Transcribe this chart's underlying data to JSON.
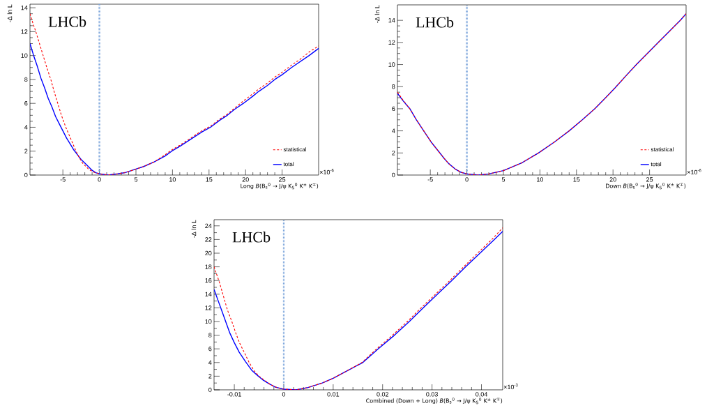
{
  "chart_data": [
    {
      "type": "line",
      "xlabel": "Long *B*(B$_{s}$$^{0}$ → J/ψ K$_{S}$$^{0}$ K$^{±}$ K$^{∓}$)",
      "ylabel": "-Δ ln L",
      "xlim": [
        -9.5,
        30
      ],
      "ylim": [
        0,
        14.3
      ],
      "xticks": [
        -5,
        0,
        5,
        10,
        15,
        20,
        25
      ],
      "yticks": [
        0,
        2,
        4,
        6,
        8,
        10,
        12,
        14
      ],
      "legend": "bottom right",
      "annotations": [
        "LHCb",
        "×10$^{-6}$"
      ],
      "ref_lines": [
        {
          "axis": "x",
          "value": 0,
          "color": "#7fa7dc",
          "line_style": "dotted"
        }
      ],
      "series": [
        {
          "name": "statistical",
          "color": "#ff0000",
          "line_style": "dashed",
          "x": [
            -9.5,
            -9.1,
            -8.7,
            -8.2,
            -7.7,
            -7.2,
            -6.65,
            -6.2,
            -5.7,
            -5.2,
            -4.6,
            -3.9,
            -3.2,
            -2.8,
            -2.3,
            -1.5,
            -0.8,
            0,
            1.2,
            2.5,
            3.5,
            5,
            6,
            7.5,
            9,
            9.9,
            11,
            12.5,
            14,
            15.2,
            16.5,
            17.5,
            18.5,
            19.7,
            21,
            21.8,
            23,
            24,
            25,
            26.3,
            27.5,
            28.7,
            30
          ],
          "values": [
            13.5,
            12.7,
            12,
            11,
            10,
            9,
            8,
            7,
            6,
            5,
            4,
            3,
            2,
            1.5,
            1,
            0.5,
            0.25,
            0.1,
            0,
            0.1,
            0.2,
            0.5,
            0.7,
            1.1,
            1.7,
            2.1,
            2.5,
            3.1,
            3.7,
            4.1,
            4.7,
            5.1,
            5.6,
            6.2,
            6.8,
            7.2,
            7.7,
            8.2,
            8.6,
            9.2,
            9.7,
            10.3,
            10.8
          ]
        },
        {
          "name": "total",
          "color": "#0000ff",
          "line_style": "solid",
          "x": [
            -9.5,
            -9,
            -8.5,
            -8,
            -7.5,
            -7,
            -6.5,
            -6,
            -5.5,
            -5,
            -4.5,
            -4,
            -3.5,
            -3,
            -2.5,
            -2,
            -1.5,
            -1,
            -0.5,
            0,
            1.2,
            2.5,
            3.5,
            5,
            6,
            7.5,
            9,
            9.9,
            11,
            12.5,
            14,
            15.2,
            16.5,
            17.5,
            18.5,
            19.7,
            21,
            21.8,
            23,
            24,
            25,
            26.3,
            27.5,
            28.7,
            30
          ],
          "values": [
            11,
            10,
            9.1,
            8.1,
            7.3,
            6.4,
            5.7,
            4.9,
            4.3,
            3.7,
            3.1,
            2.6,
            2.1,
            1.7,
            1.3,
            1,
            0.7,
            0.4,
            0.2,
            0.1,
            0,
            0.1,
            0.2,
            0.5,
            0.7,
            1.1,
            1.6,
            2,
            2.4,
            3,
            3.6,
            4,
            4.6,
            5,
            5.5,
            6,
            6.6,
            7,
            7.5,
            8,
            8.4,
            9,
            9.5,
            10,
            10.6
          ]
        }
      ]
    },
    {
      "type": "line",
      "xlabel": "Down *B*(B$_{s}$$^{0}$ → J/ψ K$_{S}$$^{0}$ K$^{±}$ K$^{∓}$)",
      "ylabel": "-Δ ln L",
      "xlim": [
        -9.5,
        30
      ],
      "ylim": [
        0,
        15.4
      ],
      "xticks": [
        -5,
        0,
        5,
        10,
        15,
        20,
        25
      ],
      "yticks": [
        0,
        2,
        4,
        6,
        8,
        10,
        12,
        14
      ],
      "legend": "bottom right",
      "annotations": [
        "LHCb",
        "×10$^{-6}$"
      ],
      "ref_lines": [
        {
          "axis": "x",
          "value": 0,
          "color": "#7fa7dc",
          "line_style": "dotted"
        }
      ],
      "series": [
        {
          "name": "statistical",
          "color": "#ff0000",
          "line_style": "dashed",
          "x": [
            -9.5,
            -8.7,
            -7.8,
            -6.9,
            -6,
            -4.9,
            -3.7,
            -3.1,
            -2.5,
            -1.6,
            -0.8,
            0,
            1.6,
            3,
            5,
            7.5,
            9.8,
            12,
            14,
            15.8,
            17.5,
            19,
            20.3,
            21.8,
            23.2,
            24.7,
            26.2,
            27.7,
            29.2,
            30
          ],
          "values": [
            7.5,
            6.75,
            6,
            5,
            4.1,
            3,
            2,
            1.5,
            1.05,
            0.55,
            0.25,
            0.1,
            0,
            0.1,
            0.4,
            1.1,
            2,
            3,
            4,
            5,
            6,
            7,
            7.9,
            9,
            10,
            11,
            12,
            13,
            14,
            14.6
          ]
        },
        {
          "name": "total",
          "color": "#0000ff",
          "line_style": "solid",
          "x": [
            -9.5,
            -8.7,
            -7.8,
            -6.9,
            -6,
            -4.9,
            -3.7,
            -3.1,
            -2.5,
            -1.6,
            -0.8,
            0,
            1.6,
            3,
            5,
            7.5,
            9.8,
            12,
            14,
            15.8,
            17.5,
            19,
            20.3,
            21.8,
            23.2,
            24.7,
            26.2,
            27.7,
            29.2,
            30
          ],
          "values": [
            7.4,
            6.7,
            6,
            5,
            4.1,
            3,
            2,
            1.5,
            1.05,
            0.55,
            0.25,
            0.1,
            0,
            0.1,
            0.4,
            1.1,
            2,
            3,
            4,
            5,
            6,
            7,
            7.9,
            9,
            10,
            11,
            12,
            13,
            14,
            14.6
          ]
        }
      ]
    },
    {
      "type": "line",
      "xlabel": "Combined (Down + Long) *B*(B$_{s}$$^{0}$ → J/ψ K$_{S}$$^{0}$ K$^{±}$ K$^{∓}$)",
      "ylabel": "-Δ ln L",
      "xlim": [
        -0.0141,
        0.0443
      ],
      "ylim": [
        0,
        24.9
      ],
      "xticks": [
        -0.01,
        0,
        0.01,
        0.02,
        0.03,
        0.04
      ],
      "yticks": [
        0,
        2,
        4,
        6,
        8,
        10,
        12,
        14,
        16,
        18,
        20,
        22,
        24
      ],
      "annotations": [
        "LHCb",
        "×10$^{-3}$"
      ],
      "ref_lines": [
        {
          "axis": "x",
          "value": 0,
          "color": "#7fa7dc",
          "line_style": "dotted"
        }
      ],
      "series": [
        {
          "color": "#ff0000",
          "line_style": "dashed",
          "x": [
            -0.0141,
            -0.013,
            -0.0122,
            -0.0114,
            -0.0105,
            -0.0097,
            -0.0089,
            -0.008,
            -0.007,
            -0.006,
            -0.005,
            -0.0041,
            -0.0025,
            -0.0012,
            0,
            0.0025,
            0.0047,
            0.0078,
            0.01,
            0.0131,
            0.0158,
            0.0188,
            0.022,
            0.025,
            0.0278,
            0.0307,
            0.0336,
            0.0364,
            0.0392,
            0.0421,
            0.0443
          ],
          "values": [
            18,
            15.7,
            13.7,
            11.7,
            10,
            8.3,
            6.8,
            5.5,
            4,
            2.8,
            2,
            1.5,
            0.7,
            0.3,
            0.1,
            0,
            0.3,
            1,
            1.7,
            2.9,
            4,
            6,
            8,
            10,
            12,
            14,
            16,
            18,
            20,
            22,
            23.7
          ]
        },
        {
          "color": "#0000ff",
          "line_style": "solid",
          "x": [
            -0.0141,
            -0.0133,
            -0.0126,
            -0.0117,
            -0.0109,
            -0.01,
            -0.009,
            -0.0077,
            -0.0064,
            -0.0053,
            -0.0043,
            -0.003,
            -0.0017,
            0,
            0.0025,
            0.0047,
            0.0078,
            0.01,
            0.0131,
            0.016,
            0.0191,
            0.0224,
            0.0254,
            0.0282,
            0.0311,
            0.034,
            0.0368,
            0.0397,
            0.0426,
            0.0443
          ],
          "values": [
            14.7,
            13.1,
            11.7,
            9.9,
            8.3,
            6.9,
            5.5,
            4.1,
            2.8,
            2.1,
            1.5,
            0.9,
            0.4,
            0.1,
            0,
            0.3,
            1,
            1.7,
            2.9,
            4,
            6,
            8,
            10,
            12,
            14,
            16,
            18,
            20,
            22,
            23.2
          ]
        }
      ]
    }
  ]
}
